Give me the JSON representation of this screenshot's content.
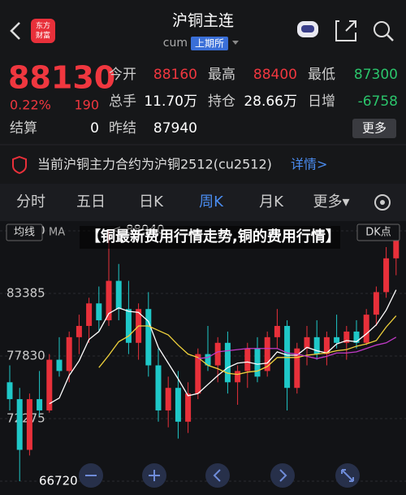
{
  "header": {
    "title": "沪铜主连",
    "logo_top": "东方",
    "logo_bottom": "财富",
    "code": "cum",
    "exchange": "上期所"
  },
  "quote": {
    "price": "88130",
    "change_pct": "0.22%",
    "change": "190",
    "settle_label": "结算",
    "settle": "0",
    "fields": [
      [
        "今开",
        "88160"
      ],
      [
        "最高",
        "88400"
      ],
      [
        "最低",
        "87300"
      ],
      [
        "总手",
        "11.70万"
      ],
      [
        "持仓",
        "28.66万"
      ],
      [
        "日增",
        "-6758"
      ],
      [
        "昨结",
        "87940"
      ]
    ],
    "more": "更多"
  },
  "notice": {
    "text": "当前沪铜主力合约为沪铜2512(cu2512)",
    "link": "详情>"
  },
  "tabs": [
    "分时",
    "五日",
    "日K",
    "周K",
    "月K",
    "更多▾"
  ],
  "active_tab": 3,
  "toolbar": {
    "ma_button": "均线",
    "ma_text": "MA",
    "dk_button": "DK点"
  },
  "overlay_title": "【铜最新费用行情走势,铜的费用行情】",
  "chart_data": {
    "type": "candlestick",
    "up_color": "#e8303a",
    "down_color": "#1fc8c8",
    "ylim": [
      66720,
      88940
    ],
    "yticks": [
      66720,
      72275,
      77830,
      83385,
      88940
    ],
    "grid": true,
    "max_label": "<-88940",
    "min_label": "66720",
    "open": [
      75500,
      74000,
      69500,
      74000,
      73000,
      77500,
      76500,
      79500,
      80500,
      82500,
      81000,
      84500,
      82000,
      79000,
      82000,
      77000,
      73000,
      75000,
      72000,
      74500,
      78000,
      77000,
      79000,
      75500,
      76500,
      78500,
      76500,
      79500,
      80500,
      75000,
      78500,
      79500,
      78000,
      79500,
      79000,
      80000,
      79000,
      81500,
      83500,
      86500
    ],
    "high": [
      77000,
      75000,
      74500,
      76500,
      78000,
      79500,
      80000,
      81500,
      83000,
      84000,
      88940,
      86000,
      84500,
      82500,
      83500,
      78500,
      76000,
      76500,
      75500,
      78500,
      80500,
      79500,
      80000,
      77000,
      79000,
      79500,
      80000,
      82000,
      81000,
      79000,
      80500,
      81000,
      80000,
      81500,
      80500,
      81000,
      82000,
      84000,
      87500,
      88300
    ],
    "low": [
      73000,
      66720,
      69000,
      72500,
      72800,
      76000,
      75500,
      78000,
      79000,
      80000,
      80500,
      81000,
      78000,
      77500,
      76000,
      72000,
      71500,
      70500,
      71000,
      74000,
      76500,
      75500,
      74500,
      73500,
      75000,
      75500,
      76000,
      78500,
      73000,
      74500,
      77000,
      77500,
      77000,
      78500,
      77500,
      78500,
      78800,
      80500,
      83000,
      85000
    ],
    "close": [
      74000,
      69500,
      74000,
      73000,
      77500,
      76500,
      79500,
      80500,
      82500,
      81000,
      84500,
      82000,
      79000,
      82000,
      77000,
      73000,
      75000,
      72000,
      74500,
      78000,
      77000,
      79000,
      75500,
      76500,
      78500,
      76000,
      79500,
      80500,
      75000,
      78500,
      79500,
      78000,
      79500,
      79000,
      80000,
      79000,
      81500,
      83500,
      86500,
      88130
    ],
    "series": [
      {
        "color": "#ffffff",
        "values": [
          null,
          null,
          null,
          null,
          73600,
          74100,
          76100,
          77400,
          79300,
          80000,
          81600,
          82100,
          81800,
          81700,
          80900,
          78600,
          77200,
          75800,
          74300,
          74500,
          75300,
          76100,
          76800,
          77200,
          77300,
          77100,
          77200,
          78200,
          77900,
          77900,
          78600,
          78300,
          78100,
          78900,
          79200,
          79100,
          79800,
          80600,
          81900,
          83700
        ]
      },
      {
        "color": "#f0d23c",
        "values": [
          null,
          null,
          null,
          null,
          null,
          null,
          null,
          null,
          null,
          76800,
          77900,
          79100,
          79600,
          80500,
          80500,
          80100,
          79700,
          78800,
          78000,
          77700,
          77000,
          76700,
          76300,
          76200,
          76400,
          76500,
          76900,
          77700,
          77700,
          77700,
          77900,
          78000,
          78100,
          78300,
          78400,
          78700,
          78900,
          79200,
          80400,
          81400
        ]
      },
      {
        "color": "#c23ac8",
        "values": [
          null,
          null,
          null,
          null,
          null,
          null,
          null,
          null,
          null,
          null,
          null,
          null,
          null,
          null,
          null,
          null,
          null,
          null,
          null,
          77600,
          77700,
          78200,
          78300,
          78400,
          78500,
          78500,
          78500,
          78500,
          78100,
          78000,
          77800,
          77600,
          77800,
          78100,
          78100,
          78200,
          78500,
          78800,
          79000,
          79500
        ]
      }
    ]
  }
}
